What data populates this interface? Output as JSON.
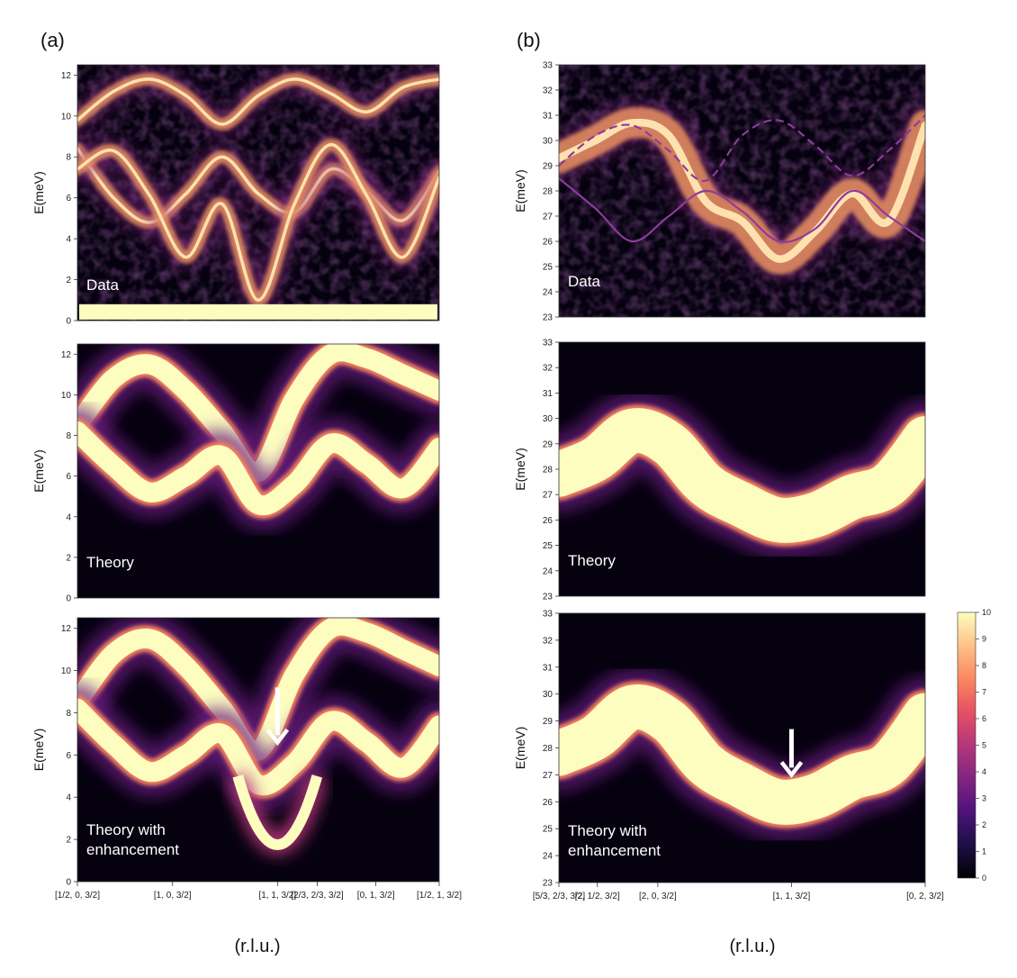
{
  "figure": {
    "panel_a_label": "(a)",
    "panel_b_label": "(b)",
    "x_unit_label": "(r.l.u.)"
  },
  "chart_data": [
    {
      "id": "a1",
      "type": "heatmap",
      "ylabel": "E(meV)",
      "annotation": "Data",
      "ylim": [
        0,
        12.5
      ],
      "yticks": [
        0,
        2,
        4,
        6,
        8,
        10,
        12
      ],
      "xticks": [],
      "style": "data",
      "branches": [
        {
          "name": "upper",
          "x": [
            0,
            0.1,
            0.2,
            0.3,
            0.4,
            0.5,
            0.6,
            0.7,
            0.8,
            0.9,
            1.0
          ],
          "y": [
            9.8,
            11.2,
            11.8,
            11.0,
            9.6,
            11.0,
            11.8,
            11.1,
            10.2,
            11.4,
            11.8
          ]
        },
        {
          "name": "middle",
          "x": [
            0,
            0.1,
            0.2,
            0.3,
            0.4,
            0.5,
            0.6,
            0.7,
            0.8,
            0.9,
            1.0
          ],
          "y": [
            8.4,
            6.0,
            4.8,
            6.2,
            8.0,
            6.2,
            5.3,
            7.4,
            6.3,
            4.9,
            7.3
          ]
        },
        {
          "name": "lower",
          "x": [
            0,
            0.1,
            0.2,
            0.3,
            0.4,
            0.5,
            0.6,
            0.7,
            0.8,
            0.9,
            1.0
          ],
          "y": [
            7.4,
            8.3,
            6.1,
            3.1,
            5.7,
            1.0,
            5.7,
            8.6,
            6.1,
            3.1,
            7.0
          ]
        }
      ],
      "bright_band_below_meV": 0.8
    },
    {
      "id": "a2",
      "type": "heatmap",
      "ylabel": "E(meV)",
      "annotation": "Theory",
      "ylim": [
        0,
        12.5
      ],
      "yticks": [
        0,
        2,
        4,
        6,
        8,
        10,
        12
      ],
      "xticks": [],
      "style": "theory",
      "branches": [
        {
          "name": "upper",
          "x": [
            0,
            0.1,
            0.2,
            0.3,
            0.4,
            0.5,
            0.6,
            0.7,
            0.8,
            0.9,
            1.0
          ],
          "y": [
            8.5,
            10.8,
            11.5,
            10.2,
            8.2,
            6.2,
            9.8,
            12.0,
            11.8,
            11.0,
            10.2
          ]
        },
        {
          "name": "lower",
          "x": [
            0,
            0.1,
            0.2,
            0.3,
            0.4,
            0.5,
            0.6,
            0.7,
            0.8,
            0.9,
            1.0
          ],
          "y": [
            8.2,
            6.5,
            5.2,
            6.0,
            7.0,
            4.6,
            5.6,
            7.6,
            6.6,
            5.4,
            7.4
          ]
        }
      ],
      "enhancement": null
    },
    {
      "id": "a3",
      "type": "heatmap",
      "ylabel": "E(meV)",
      "annotation_line1": "Theory with",
      "annotation_line2": "enhancement",
      "ylim": [
        0,
        12.5
      ],
      "yticks": [
        0,
        2,
        4,
        6,
        8,
        10,
        12
      ],
      "xticks": [
        "[1/2, 0, 3/2]",
        "[1, 0, 3/2]",
        "[1, 1, 3/2]",
        "[2/3, 2/3, 3/2]",
        "[0, 1, 3/2]",
        "[1/2, 1, 3/2]"
      ],
      "xtick_pos": [
        0,
        0.263,
        0.553,
        0.663,
        0.825,
        1.0
      ],
      "style": "theory",
      "branches": [
        {
          "name": "upper",
          "x": [
            0,
            0.1,
            0.2,
            0.3,
            0.4,
            0.5,
            0.6,
            0.7,
            0.8,
            0.9,
            1.0
          ],
          "y": [
            8.5,
            10.8,
            11.5,
            10.2,
            8.2,
            6.2,
            9.8,
            12.0,
            11.8,
            11.0,
            10.2
          ]
        },
        {
          "name": "lower",
          "x": [
            0,
            0.1,
            0.2,
            0.3,
            0.4,
            0.5,
            0.6,
            0.7,
            0.8,
            0.9,
            1.0
          ],
          "y": [
            8.2,
            6.5,
            5.2,
            6.0,
            7.0,
            4.6,
            5.6,
            7.6,
            6.6,
            5.4,
            7.4
          ]
        }
      ],
      "enhancement": {
        "x": 0.553,
        "min_meV": 0.2
      },
      "arrow_x": 0.553,
      "arrow_from_meV": 9.2,
      "arrow_to_meV": 6.6
    },
    {
      "id": "b1",
      "type": "heatmap",
      "ylabel": "E(meV)",
      "annotation": "Data",
      "ylim": [
        23,
        33
      ],
      "yticks": [
        23,
        24,
        25,
        26,
        27,
        28,
        29,
        30,
        31,
        32,
        33
      ],
      "xticks": [],
      "style": "data",
      "branches": [
        {
          "name": "band",
          "x": [
            0,
            0.1,
            0.2,
            0.3,
            0.4,
            0.5,
            0.6,
            0.7,
            0.8,
            0.9,
            1.0
          ],
          "y": [
            29.3,
            30.0,
            30.7,
            30.2,
            27.6,
            26.8,
            25.3,
            26.4,
            27.9,
            26.8,
            30.6
          ]
        },
        {
          "name": "model-solid",
          "x": [
            0,
            0.1,
            0.2,
            0.3,
            0.4,
            0.5,
            0.6,
            0.7,
            0.8,
            0.9,
            1.0
          ],
          "y": [
            28.5,
            27.3,
            26.0,
            27.0,
            28.0,
            27.2,
            26.0,
            26.5,
            28.0,
            27.0,
            26.0
          ]
        },
        {
          "name": "model-dashed",
          "x": [
            0,
            0.1,
            0.2,
            0.3,
            0.4,
            0.5,
            0.6,
            0.7,
            0.8,
            0.9,
            1.0
          ],
          "y": [
            29.0,
            30.2,
            30.6,
            29.6,
            28.4,
            30.2,
            30.8,
            29.8,
            28.6,
            29.6,
            31.0
          ]
        }
      ]
    },
    {
      "id": "b2",
      "type": "heatmap",
      "ylabel": "E(meV)",
      "annotation": "Theory",
      "ylim": [
        23,
        33
      ],
      "yticks": [
        23,
        24,
        25,
        26,
        27,
        28,
        29,
        30,
        31,
        32,
        33
      ],
      "xticks": [],
      "style": "theory",
      "branches": [
        {
          "name": "band",
          "x": [
            0,
            0.1,
            0.2,
            0.3,
            0.4,
            0.5,
            0.6,
            0.7,
            0.8,
            0.9,
            1.0
          ],
          "y": [
            27.8,
            28.4,
            29.5,
            29.0,
            27.4,
            26.6,
            26.0,
            26.2,
            26.9,
            27.4,
            29.2
          ]
        }
      ]
    },
    {
      "id": "b3",
      "type": "heatmap",
      "ylabel": "E(meV)",
      "annotation_line1": "Theory with",
      "annotation_line2": "enhancement",
      "ylim": [
        23,
        33
      ],
      "yticks": [
        23,
        24,
        25,
        26,
        27,
        28,
        29,
        30,
        31,
        32,
        33
      ],
      "xticks": [
        "[5/3, 2/3, 3/2]",
        "[2, 1/2, 3/2]",
        "[2, 0, 3/2]",
        "[1, 1, 3/2]",
        "[0, 2, 3/2]"
      ],
      "xtick_pos": [
        0,
        0.105,
        0.27,
        0.635,
        1.0
      ],
      "style": "theory",
      "branches": [
        {
          "name": "band",
          "x": [
            0,
            0.1,
            0.2,
            0.3,
            0.4,
            0.5,
            0.6,
            0.7,
            0.8,
            0.9,
            1.0
          ],
          "y": [
            27.8,
            28.4,
            29.5,
            29.0,
            27.4,
            26.6,
            26.0,
            26.2,
            26.9,
            27.4,
            29.2
          ]
        }
      ],
      "arrow_x": 0.635,
      "arrow_from_meV": 28.7,
      "arrow_to_meV": 27.0
    }
  ],
  "colorbar": {
    "range": [
      0,
      10
    ],
    "ticks": [
      "0",
      "1",
      "2",
      "3",
      "4",
      "5",
      "6",
      "7",
      "8",
      "9",
      "10"
    ],
    "colormap": "magma",
    "stops": [
      "#000004",
      "#1c1044",
      "#4f127b",
      "#812581",
      "#b5367a",
      "#e55064",
      "#fb8761",
      "#fec287",
      "#fcfdbf"
    ]
  }
}
